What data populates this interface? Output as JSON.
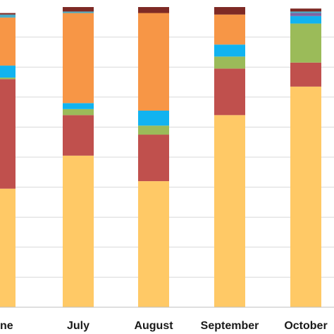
{
  "chart_data": {
    "type": "bar",
    "stacked": true,
    "categories": [
      "June",
      "July",
      "August",
      "September",
      "October"
    ],
    "ylim": [
      0,
      100
    ],
    "grid": true,
    "series": [
      {
        "color": "#FFC966",
        "values": [
          39.5,
          50.5,
          42.0,
          64.0,
          73.5
        ]
      },
      {
        "color": "#C0504D",
        "values": [
          36.5,
          13.5,
          15.5,
          15.5,
          8.0
        ]
      },
      {
        "color": "#9BBB59",
        "values": [
          0.5,
          2.0,
          3.0,
          4.0,
          13.0
        ]
      },
      {
        "color": "#11B3F0",
        "values": [
          4.0,
          2.0,
          5.0,
          4.0,
          2.5
        ]
      },
      {
        "color": "#8064A2",
        "values": [
          0.0,
          0.0,
          0.0,
          0.0,
          1.0
        ]
      },
      {
        "color": "#F79646",
        "values": [
          16.0,
          30.0,
          32.5,
          10.0,
          0.0
        ]
      },
      {
        "color": "#4BACC6",
        "values": [
          1.0,
          0.5,
          0.0,
          0.0,
          0.5
        ]
      },
      {
        "color": "#7E2A25",
        "values": [
          0.5,
          1.5,
          2.0,
          2.5,
          1.0
        ]
      }
    ]
  }
}
